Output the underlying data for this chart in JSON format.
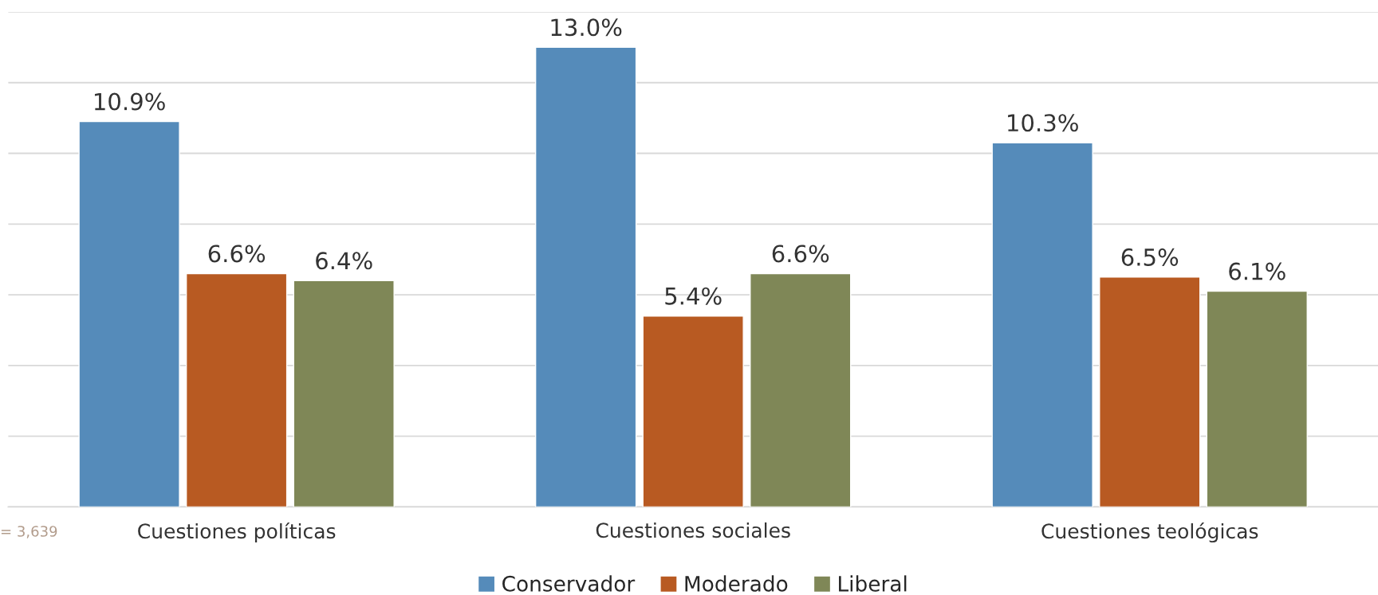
{
  "chart_data": {
    "type": "bar",
    "categories": [
      "Cuestiones políticas",
      "Cuestiones sociales",
      "Cuestiones teológicas"
    ],
    "series": [
      {
        "name": "Conservador",
        "color": "#558bba",
        "values": [
          10.9,
          13.0,
          10.3
        ],
        "value_labels": [
          "10.9%",
          "13.0%",
          "10.3%"
        ]
      },
      {
        "name": "Moderado",
        "color": "#b85a22",
        "values": [
          6.6,
          5.4,
          6.5
        ],
        "value_labels": [
          "6.6%",
          "5.4%",
          "6.5%"
        ]
      },
      {
        "name": "Liberal",
        "color": "#7f8757",
        "values": [
          6.4,
          6.6,
          6.1
        ],
        "value_labels": [
          "6.4%",
          "6.6%",
          "6.1%"
        ]
      }
    ],
    "ylim": [
      0,
      14
    ],
    "yticks": [
      {
        "value": 0,
        "label": null
      },
      {
        "value": 2,
        "label": null
      },
      {
        "value": 4,
        "label": null
      },
      {
        "value": 6,
        "label": null
      },
      {
        "value": 8,
        "label": null
      },
      {
        "value": 10,
        "label": null
      },
      {
        "value": 12,
        "label": null
      },
      {
        "value": 14,
        "label": null
      }
    ],
    "tick_labels": "x",
    "grid": "y",
    "legend": "bottom",
    "annotations": [
      "= 3,639"
    ]
  }
}
